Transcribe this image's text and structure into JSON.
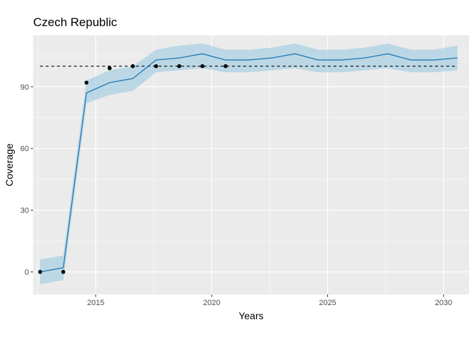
{
  "chart_data": {
    "type": "line",
    "title": "Czech Republic",
    "xlabel": "Years",
    "ylabel": "Coverage",
    "xlim": [
      2012.3,
      2031.1
    ],
    "ylim": [
      -11,
      115
    ],
    "x_ticks": [
      2015,
      2020,
      2025,
      2030
    ],
    "y_ticks": [
      0,
      30,
      60,
      90
    ],
    "grid": true,
    "reference_line": {
      "y": 100,
      "style": "dashed"
    },
    "series": [
      {
        "kind": "ribbon",
        "x": [
          2012.6,
          2013.6,
          2014.6,
          2015.6,
          2016.6,
          2017.6,
          2018.6,
          2019.6,
          2020.6,
          2021.6,
          2022.6,
          2023.6,
          2024.6,
          2025.6,
          2026.6,
          2027.6,
          2028.6,
          2029.6,
          2030.6
        ],
        "lower": [
          -6,
          -4,
          82,
          86,
          88,
          97,
          98,
          99,
          97,
          97,
          98,
          99,
          97,
          97,
          98,
          99,
          97,
          97,
          98
        ],
        "upper": [
          6,
          8,
          93,
          98,
          100,
          108,
          110,
          111,
          108,
          108,
          109,
          111,
          108,
          108,
          109,
          111,
          108,
          108,
          110
        ]
      },
      {
        "kind": "line",
        "x": [
          2012.6,
          2013.6,
          2014.6,
          2015.6,
          2016.6,
          2017.6,
          2018.6,
          2019.6,
          2020.6,
          2021.6,
          2022.6,
          2023.6,
          2024.6,
          2025.6,
          2026.6,
          2027.6,
          2028.6,
          2029.6,
          2030.6
        ],
        "values": [
          0,
          2,
          87,
          92,
          94,
          103,
          104,
          106,
          103,
          103,
          104,
          106,
          103,
          103,
          104,
          106,
          103,
          103,
          104
        ]
      },
      {
        "kind": "points",
        "x": [
          2012.6,
          2013.6,
          2014.6,
          2015.6,
          2016.6,
          2017.6,
          2018.6,
          2019.6,
          2020.6
        ],
        "values": [
          0,
          0,
          92,
          99,
          100,
          100,
          100,
          100,
          100
        ]
      }
    ],
    "colors": {
      "panel": "#ebebeb",
      "grid_major": "#ffffff",
      "ribbon": "#a6cee3",
      "line": "#1f78b4",
      "points": "#000000",
      "reference": "#000000"
    }
  }
}
